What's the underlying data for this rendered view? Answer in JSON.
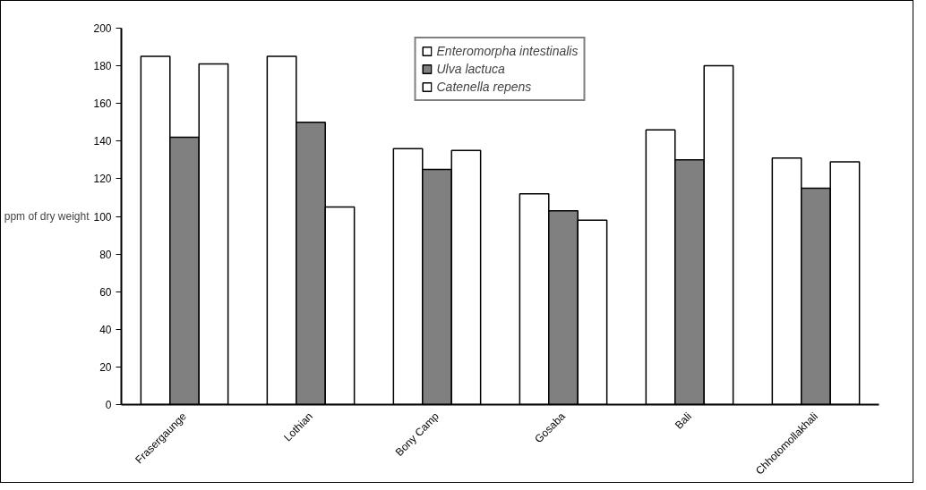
{
  "chart_data": {
    "type": "bar",
    "ylabel": "ppm of dry weight",
    "categories": [
      "Frasergaunge",
      "Lothian",
      "Bony Camp",
      "Gosaba",
      "Bali",
      "Chhotomollakhali"
    ],
    "series": [
      {
        "name": "Enteromorpha intestinalis",
        "color": "#ffffff",
        "values": [
          185,
          185,
          136,
          112,
          146,
          131
        ]
      },
      {
        "name": "Ulva lactuca",
        "color": "#808080",
        "values": [
          142,
          150,
          125,
          103,
          130,
          115
        ]
      },
      {
        "name": "Catenella repens",
        "color": "#ffffff",
        "values": [
          181,
          105,
          135,
          98,
          180,
          129
        ]
      }
    ],
    "ylim": [
      0,
      200
    ],
    "yticks": [
      0,
      20,
      40,
      60,
      80,
      100,
      120,
      140,
      160,
      180,
      200
    ],
    "grid": false,
    "legend": "top"
  }
}
